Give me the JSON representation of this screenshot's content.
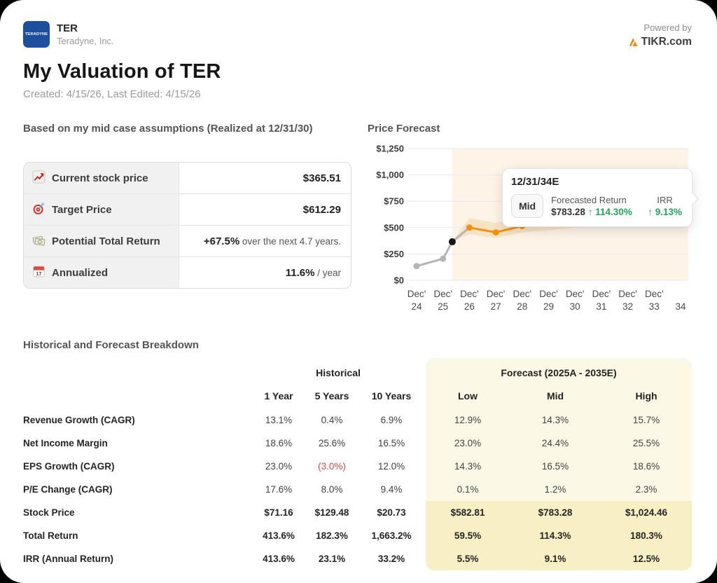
{
  "header": {
    "ticker": "TER",
    "company": "Teradyne, Inc.",
    "logo_text": "TERADYNE",
    "logo_color": "#1d4f9c",
    "powered_by": "Powered by",
    "brand_name": "TIKR.com",
    "brand_color": "#f0860f"
  },
  "title": {
    "heading": "My Valuation of TER",
    "subtitle": "Created: 4/15/26, Last Edited: 4/15/26"
  },
  "summary": {
    "heading": "Based on my mid case assumptions (Realized at 12/31/30)",
    "rows": [
      {
        "icon": "stock-chart-icon",
        "label": "Current stock price",
        "value": "$365.51",
        "suffix": ""
      },
      {
        "icon": "target-icon",
        "label": "Target Price",
        "value": "$612.29",
        "suffix": ""
      },
      {
        "icon": "money-icon",
        "label": "Potential Total Return",
        "value": "+67.5%",
        "suffix": " over the next 4.7 years."
      },
      {
        "icon": "calendar-icon",
        "label": "Annualized",
        "value": "11.6%",
        "suffix": " / year"
      }
    ]
  },
  "chart": {
    "heading": "Price Forecast"
  },
  "chart_data": {
    "type": "line",
    "title": "Price Forecast",
    "ylim": [
      0,
      1250
    ],
    "grid": true,
    "y_ticks": [
      {
        "value": 0,
        "label": "$0"
      },
      {
        "value": 250,
        "label": "$250"
      },
      {
        "value": 500,
        "label": "$500"
      },
      {
        "value": 750,
        "label": "$750"
      },
      {
        "value": 1000,
        "label": "$1,000"
      },
      {
        "value": 1250,
        "label": "$1,250"
      }
    ],
    "x_ticks": [
      {
        "top": "Dec'",
        "bottom": "24"
      },
      {
        "top": "Dec'",
        "bottom": "25"
      },
      {
        "top": "Dec'",
        "bottom": "26"
      },
      {
        "top": "Dec'",
        "bottom": "27"
      },
      {
        "top": "Dec'",
        "bottom": "28"
      },
      {
        "top": "Dec'",
        "bottom": "29"
      },
      {
        "top": "Dec'",
        "bottom": "30"
      },
      {
        "top": "Dec'",
        "bottom": "31"
      },
      {
        "top": "Dec'",
        "bottom": "32"
      },
      {
        "top": "Dec'",
        "bottom": "33"
      },
      {
        "top": "",
        "bottom": "34"
      }
    ],
    "forecast_region_start": 1.35,
    "region_color": "#fdf3e6",
    "band": {
      "color": "#f5dfbc",
      "x": [
        1.35,
        2,
        3,
        4,
        5,
        6,
        7,
        8,
        9,
        10
      ],
      "low": [
        365.51,
        440,
        400,
        455,
        475,
        500,
        525,
        545,
        565,
        582.81
      ],
      "high": [
        365.51,
        590,
        545,
        600,
        640,
        690,
        745,
        805,
        880,
        1024.46
      ]
    },
    "series": [
      {
        "name": "historical",
        "color": "#b4b4b4",
        "x": [
          0,
          1,
          1.35,
          2
        ],
        "values": [
          135,
          205,
          365.51,
          500
        ],
        "dot_count": 2
      },
      {
        "name": "forecast-mid",
        "color": "#f29111",
        "x": [
          2,
          3,
          4,
          5,
          6,
          7,
          8,
          9,
          10
        ],
        "values": [
          500,
          455,
          515,
          550,
          595,
          640,
          690,
          735,
          783.28
        ],
        "dot_count": 9
      }
    ],
    "current_point": {
      "x": 1.35,
      "value": 365.51,
      "color": "#151515"
    }
  },
  "tooltip": {
    "date": "12/31/34E",
    "case_label": "Mid",
    "return_label": "Forecasted Return",
    "return_value": "$783.28",
    "return_change": "↑ 114.30%",
    "irr_label": "IRR",
    "irr_change": "↑ 9.13%",
    "positive_color": "#23a35f"
  },
  "breakdown": {
    "heading": "Historical and Forecast Breakdown",
    "historical_title": "Historical",
    "historical_columns": [
      "1 Year",
      "5 Years",
      "10 Years"
    ],
    "forecast_title": "Forecast (2025A - 2035E)",
    "forecast_columns": [
      "Low",
      "Mid",
      "High"
    ],
    "panel_bg": "#fcf8e6",
    "panel_highlight": "#f8efc5",
    "negative_color": "#e0483e",
    "rows": [
      {
        "label": "Revenue Growth (CAGR)",
        "historical": [
          "13.1%",
          "0.4%",
          "6.9%"
        ],
        "forecast": [
          "12.9%",
          "14.3%",
          "15.7%"
        ],
        "bold": false,
        "highlight": false,
        "negative_historical_index": -1
      },
      {
        "label": "Net Income Margin",
        "historical": [
          "18.6%",
          "25.6%",
          "16.5%"
        ],
        "forecast": [
          "23.0%",
          "24.4%",
          "25.5%"
        ],
        "bold": false,
        "highlight": false,
        "negative_historical_index": -1
      },
      {
        "label": "EPS Growth (CAGR)",
        "historical": [
          "23.0%",
          "(3.0%)",
          "12.0%"
        ],
        "forecast": [
          "14.3%",
          "16.5%",
          "18.6%"
        ],
        "bold": false,
        "highlight": false,
        "negative_historical_index": 1
      },
      {
        "label": "P/E Change (CAGR)",
        "historical": [
          "17.6%",
          "8.0%",
          "9.4%"
        ],
        "forecast": [
          "0.1%",
          "1.2%",
          "2.3%"
        ],
        "bold": false,
        "highlight": false,
        "negative_historical_index": -1
      },
      {
        "label": "Stock Price",
        "historical": [
          "$71.16",
          "$129.48",
          "$20.73"
        ],
        "forecast": [
          "$582.81",
          "$783.28",
          "$1,024.46"
        ],
        "bold": true,
        "highlight": true,
        "negative_historical_index": -1
      },
      {
        "label": "Total Return",
        "historical": [
          "413.6%",
          "182.3%",
          "1,663.2%"
        ],
        "forecast": [
          "59.5%",
          "114.3%",
          "180.3%"
        ],
        "bold": true,
        "highlight": true,
        "negative_historical_index": -1
      },
      {
        "label": "IRR (Annual Return)",
        "historical": [
          "413.6%",
          "23.1%",
          "33.2%"
        ],
        "forecast": [
          "5.5%",
          "9.1%",
          "12.5%"
        ],
        "bold": true,
        "highlight": true,
        "negative_historical_index": -1
      }
    ]
  }
}
